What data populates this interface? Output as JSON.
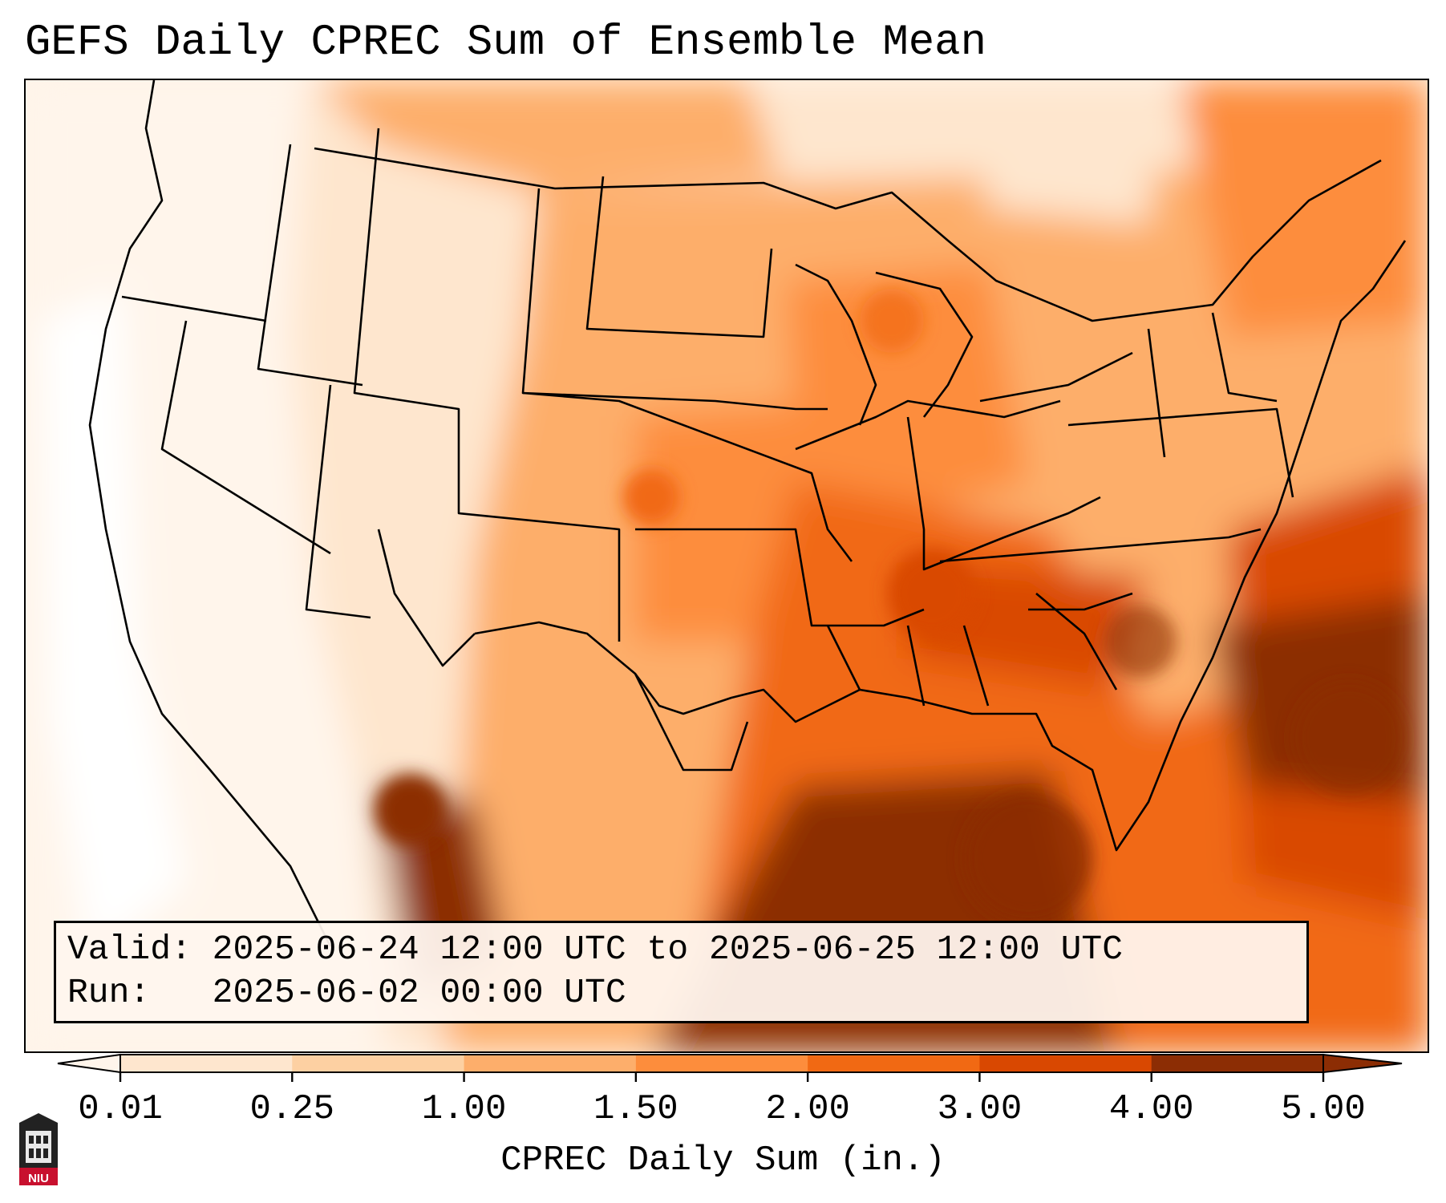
{
  "title": "GEFS Daily CPREC Sum of Ensemble Mean",
  "info": {
    "valid_label": "Valid:",
    "valid_value": "2025-06-24 12:00 UTC to 2025-06-25 12:00 UTC",
    "run_label": "Run:",
    "run_value": "2025-06-02 00:00 UTC"
  },
  "colorbar": {
    "label": "CPREC Daily Sum (in.)",
    "ticks": [
      "0.01",
      "0.25",
      "1.00",
      "1.50",
      "2.00",
      "3.00",
      "4.00",
      "5.00"
    ],
    "colors": [
      "#fff5eb",
      "#fee6ce",
      "#fdd0a2",
      "#fdae6b",
      "#fd8d3c",
      "#f16913",
      "#d94801",
      "#8c2d04"
    ],
    "extend": "both"
  },
  "logo": {
    "text": "NIU",
    "color": "#c8102e"
  }
}
